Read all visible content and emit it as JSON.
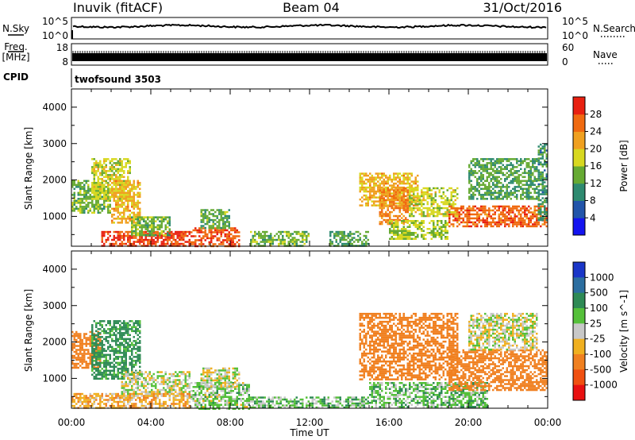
{
  "header": {
    "station": "Inuvik (fitACF)",
    "beam": "Beam 04",
    "date": "31/Oct/2016"
  },
  "panels": {
    "nsky": {
      "label": "N.Sky",
      "left_top": "10^5",
      "left_bottom": "10^0",
      "right_top": "10^5",
      "right_bottom": "10^0",
      "right_label": "N.Search"
    },
    "freq": {
      "label_line1": "Freq.",
      "label_line2": "[MHz]",
      "left_top": "18",
      "left_bottom": "8",
      "right_top": "60",
      "right_bottom": "0",
      "right_label": "Nave"
    },
    "cpid": {
      "label": "CPID",
      "program": "twofsound 3503"
    }
  },
  "colors": {
    "power": [
      "#1414f0",
      "#2255aa",
      "#2e8a70",
      "#66aa33",
      "#d8d820",
      "#f0a020",
      "#f06a10",
      "#e82010"
    ],
    "velocity": [
      "#1a36c8",
      "#2c6ea0",
      "#2e8a55",
      "#55c03a",
      "#c8c8c8",
      "#f0b020",
      "#f08020",
      "#f05010",
      "#e81010"
    ]
  },
  "chart_data": [
    {
      "type": "heatmap",
      "title": "Power",
      "ylabel": "Slant Range [km]",
      "xlabel": "",
      "x_ticks": [
        "00:00",
        "04:00",
        "08:00",
        "12:00",
        "16:00",
        "20:00",
        "00:00"
      ],
      "y_ticks": [
        "1000",
        "2000",
        "3000",
        "4000"
      ],
      "ylim": [
        180,
        4500
      ],
      "xlim_hours": [
        0,
        24
      ],
      "colorbar": {
        "label": "Power [dB]",
        "ticks": [
          "4",
          "8",
          "12",
          "16",
          "20",
          "24",
          "28"
        ],
        "range": [
          0,
          32
        ]
      },
      "regions": [
        {
          "t": [
            0.0,
            2.0
          ],
          "r": [
            1100,
            2000
          ],
          "value": 14
        },
        {
          "t": [
            1.0,
            3.0
          ],
          "r": [
            1500,
            2600
          ],
          "value": 18
        },
        {
          "t": [
            2.0,
            3.5
          ],
          "r": [
            800,
            2000
          ],
          "value": 22
        },
        {
          "t": [
            1.5,
            6.0
          ],
          "r": [
            180,
            600
          ],
          "value": 30
        },
        {
          "t": [
            3.0,
            5.0
          ],
          "r": [
            500,
            1000
          ],
          "value": 14
        },
        {
          "t": [
            6.0,
            8.5
          ],
          "r": [
            180,
            700
          ],
          "value": 29
        },
        {
          "t": [
            6.5,
            8.0
          ],
          "r": [
            700,
            1200
          ],
          "value": 13
        },
        {
          "t": [
            9.0,
            12.0
          ],
          "r": [
            200,
            600
          ],
          "value": 14
        },
        {
          "t": [
            13.0,
            15.0
          ],
          "r": [
            200,
            600
          ],
          "value": 12
        },
        {
          "t": [
            14.5,
            17.5
          ],
          "r": [
            1300,
            2200
          ],
          "value": 22
        },
        {
          "t": [
            15.5,
            17.0
          ],
          "r": [
            800,
            1800
          ],
          "value": 26
        },
        {
          "t": [
            16.0,
            19.0
          ],
          "r": [
            400,
            900
          ],
          "value": 16
        },
        {
          "t": [
            17.0,
            19.5
          ],
          "r": [
            1000,
            1800
          ],
          "value": 18
        },
        {
          "t": [
            19.0,
            24.0
          ],
          "r": [
            700,
            1300
          ],
          "value": 28
        },
        {
          "t": [
            20.0,
            23.5
          ],
          "r": [
            1500,
            2600
          ],
          "value": 12
        },
        {
          "t": [
            23.5,
            24.0
          ],
          "r": [
            900,
            3000
          ],
          "value": 10
        }
      ]
    },
    {
      "type": "heatmap",
      "title": "Velocity",
      "ylabel": "Slant Range [km]",
      "xlabel": "Time UT",
      "x_ticks": [
        "00:00",
        "04:00",
        "08:00",
        "12:00",
        "16:00",
        "20:00",
        "00:00"
      ],
      "y_ticks": [
        "1000",
        "2000",
        "3000",
        "4000"
      ],
      "ylim": [
        180,
        4500
      ],
      "xlim_hours": [
        0,
        24
      ],
      "colorbar": {
        "label": "Velocity [m s^-1]",
        "ticks": [
          "1000",
          "500",
          "100",
          "25",
          "-25",
          "-100",
          "-500",
          "-1000"
        ]
      },
      "regions": [
        {
          "t": [
            0.0,
            1.5
          ],
          "r": [
            1300,
            2300
          ],
          "value": -200
        },
        {
          "t": [
            1.0,
            3.5
          ],
          "r": [
            1000,
            2600
          ],
          "value": 150
        },
        {
          "t": [
            2.5,
            6.0
          ],
          "r": [
            500,
            1200
          ],
          "value": 0
        },
        {
          "t": [
            0.0,
            6.0
          ],
          "r": [
            180,
            600
          ],
          "value": -80
        },
        {
          "t": [
            6.0,
            9.0
          ],
          "r": [
            180,
            900
          ],
          "value": 40
        },
        {
          "t": [
            6.5,
            8.5
          ],
          "r": [
            800,
            1300
          ],
          "value": 0
        },
        {
          "t": [
            9.0,
            15.0
          ],
          "r": [
            200,
            500
          ],
          "value": 60
        },
        {
          "t": [
            14.5,
            19.5
          ],
          "r": [
            1000,
            2800
          ],
          "value": -300
        },
        {
          "t": [
            15.0,
            21.0
          ],
          "r": [
            200,
            900
          ],
          "value": 60
        },
        {
          "t": [
            19.0,
            24.0
          ],
          "r": [
            700,
            1800
          ],
          "value": -300
        },
        {
          "t": [
            20.0,
            23.5
          ],
          "r": [
            1800,
            2800
          ],
          "value": 0
        }
      ]
    }
  ]
}
